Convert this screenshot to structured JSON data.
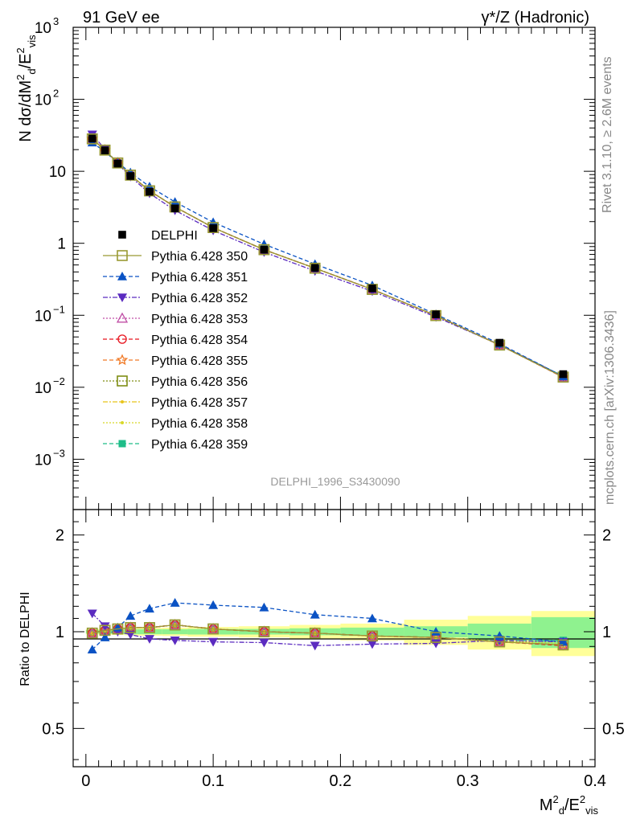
{
  "header": {
    "left": "91 GeV ee",
    "right": "γ*/Z (Hadronic)"
  },
  "side_labels": {
    "rivet": "Rivet 3.1.10, ≥ 2.6M events",
    "mcplots": "mcplots.cern.ch [arXiv:1306.3436]"
  },
  "chart_data": [
    {
      "type": "line",
      "panel": "main",
      "watermark": "DELPHI_1996_S3430090",
      "ylabel": "N dσ/dM_d^2/E_vis^2",
      "yscale": "log",
      "ylim": [
        0.0002,
        1000
      ],
      "xlim": [
        -0.01,
        0.4
      ],
      "yticks": [
        {
          "v": 0.001,
          "label": "10",
          "exp": "−3"
        },
        {
          "v": 0.01,
          "label": "10",
          "exp": "−2"
        },
        {
          "v": 0.1,
          "label": "10",
          "exp": "−1"
        },
        {
          "v": 1,
          "label": "1",
          "exp": ""
        },
        {
          "v": 10,
          "label": "10",
          "exp": ""
        },
        {
          "v": 100,
          "label": "10",
          "exp": "2"
        },
        {
          "v": 1000,
          "label": "10",
          "exp": "3"
        }
      ],
      "x": [
        0.005,
        0.015,
        0.025,
        0.035,
        0.05,
        0.07,
        0.1,
        0.14,
        0.18,
        0.225,
        0.275,
        0.325,
        0.375
      ],
      "data_label": "DELPHI",
      "data_values": [
        28.5,
        19.5,
        12.8,
        8.6,
        5.2,
        3.05,
        1.62,
        0.815,
        0.455,
        0.236,
        0.103,
        0.0415,
        0.0152
      ],
      "series": [
        {
          "name": "Pythia 6.428 350",
          "color": "#999933",
          "marker": "open-square",
          "dash": "solid",
          "ratio": [
            0.99,
            1.01,
            1.02,
            1.03,
            1.03,
            1.05,
            1.02,
            1.0,
            0.99,
            0.97,
            0.96,
            0.93,
            0.91
          ]
        },
        {
          "name": "Pythia 6.428 351",
          "color": "#0a52c4",
          "marker": "triangle-up",
          "dash": "5,3",
          "ratio": [
            0.88,
            0.96,
            1.03,
            1.12,
            1.18,
            1.23,
            1.21,
            1.19,
            1.13,
            1.1,
            1.0,
            0.97,
            0.93
          ]
        },
        {
          "name": "Pythia 6.428 352",
          "color": "#5b2bc0",
          "marker": "triangle-down",
          "dash": "6,2,2,2",
          "ratio": [
            1.14,
            1.04,
            1.0,
            0.98,
            0.95,
            0.94,
            0.93,
            0.925,
            0.905,
            0.915,
            0.92,
            0.94,
            0.93
          ]
        },
        {
          "name": "Pythia 6.428 353",
          "color": "#c04fa6",
          "marker": "open-triangle",
          "dash": "2,2",
          "ratio": [
            0.99,
            1.01,
            1.02,
            1.03,
            1.03,
            1.05,
            1.02,
            1.0,
            0.99,
            0.97,
            0.96,
            0.93,
            0.91
          ]
        },
        {
          "name": "Pythia 6.428 354",
          "color": "#e8151f",
          "marker": "open-circle",
          "dash": "5,3",
          "ratio": [
            0.99,
            1.01,
            1.02,
            1.03,
            1.03,
            1.05,
            1.02,
            1.0,
            0.99,
            0.97,
            0.96,
            0.93,
            0.905
          ]
        },
        {
          "name": "Pythia 6.428 355",
          "color": "#f07b28",
          "marker": "open-star",
          "dash": "5,3",
          "ratio": [
            0.99,
            1.01,
            1.02,
            1.03,
            1.03,
            1.05,
            1.02,
            1.0,
            0.99,
            0.97,
            0.96,
            0.93,
            0.91
          ]
        },
        {
          "name": "Pythia 6.428 356",
          "color": "#7f8e14",
          "marker": "open-square",
          "dash": "2,2",
          "ratio": [
            0.99,
            1.01,
            1.02,
            1.03,
            1.03,
            1.05,
            1.02,
            1.0,
            0.99,
            0.97,
            0.96,
            0.93,
            0.91
          ]
        },
        {
          "name": "Pythia 6.428 357",
          "color": "#e8c41a",
          "marker": "small-dot",
          "dash": "6,2,2,2",
          "ratio": [
            0.99,
            1.01,
            1.02,
            1.03,
            1.03,
            1.05,
            1.02,
            1.0,
            0.99,
            0.97,
            0.96,
            0.93,
            0.91
          ]
        },
        {
          "name": "Pythia 6.428 358",
          "color": "#d8d828",
          "marker": "small-dot",
          "dash": "2,2",
          "ratio": [
            0.99,
            1.01,
            1.02,
            1.03,
            1.03,
            1.05,
            1.02,
            1.0,
            0.99,
            0.97,
            0.96,
            0.935,
            0.92
          ]
        },
        {
          "name": "Pythia 6.428 359",
          "color": "#1ebd88",
          "marker": "filled-square",
          "dash": "5,3",
          "ratio": [
            0.99,
            1.01,
            1.02,
            1.03,
            1.03,
            1.05,
            1.02,
            1.0,
            0.99,
            0.97,
            0.96,
            0.935,
            0.94
          ]
        }
      ],
      "legend_position": "middle-left"
    },
    {
      "type": "line",
      "panel": "ratio",
      "ylabel": "Ratio to DELPHI",
      "xlabel": "M_d^2/E_vis^2",
      "yscale": "log",
      "ylim": [
        0.38,
        2.4
      ],
      "xlim": [
        -0.01,
        0.4
      ],
      "yticks": [
        0.5,
        1,
        2
      ],
      "xticks": [
        {
          "v": 0,
          "label": "0"
        },
        {
          "v": 0.1,
          "label": "0.1"
        },
        {
          "v": 0.2,
          "label": "0.2"
        },
        {
          "v": 0.3,
          "label": "0.3"
        },
        {
          "v": 0.4,
          "label": "0.4"
        }
      ],
      "x_edges": [
        0,
        0.01,
        0.02,
        0.03,
        0.04,
        0.06,
        0.08,
        0.12,
        0.16,
        0.2,
        0.25,
        0.3,
        0.35,
        0.4
      ],
      "band_stat": [
        0.012,
        0.014,
        0.016,
        0.018,
        0.018,
        0.018,
        0.02,
        0.02,
        0.025,
        0.03,
        0.04,
        0.06,
        0.11
      ],
      "band_total": [
        0.018,
        0.02,
        0.022,
        0.025,
        0.028,
        0.03,
        0.035,
        0.04,
        0.05,
        0.06,
        0.09,
        0.12,
        0.16
      ],
      "band_colors": {
        "total": "#ffff99",
        "stat": "#8ff28f"
      }
    }
  ]
}
